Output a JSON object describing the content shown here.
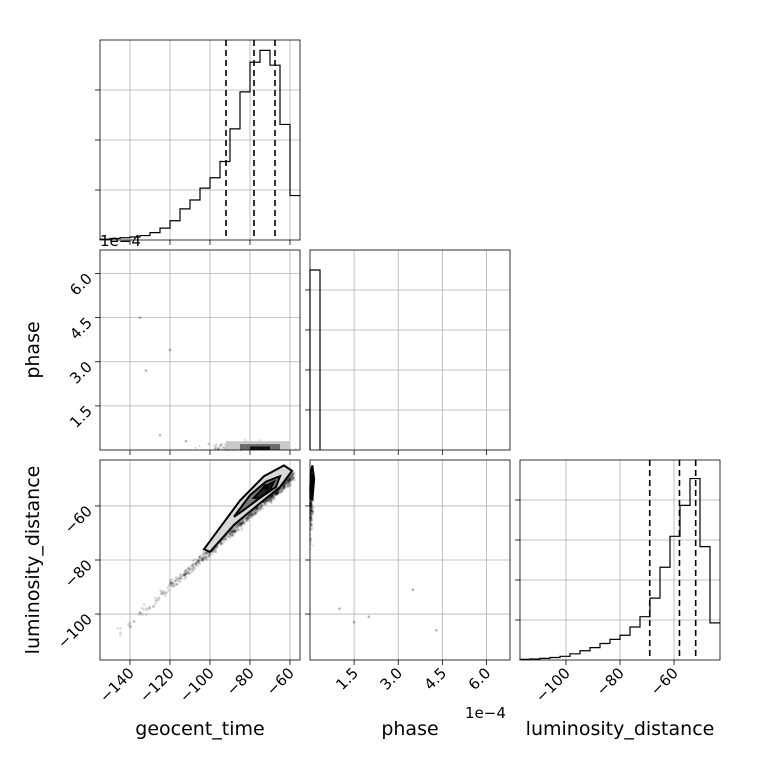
{
  "chart_data": {
    "type": "corner",
    "parameters": [
      "geocent_time",
      "phase",
      "luminosity_distance"
    ],
    "axis_labels": {
      "geocent_time": "geocent_time",
      "phase": "phase",
      "luminosity_distance": "luminosity_distance"
    },
    "ranges": {
      "geocent_time": [
        -155,
        -55
      ],
      "phase": [
        0,
        0.00068
      ],
      "luminosity_distance": [
        -117,
        -43
      ]
    },
    "offset_text": "1e−4",
    "ticks": {
      "geocent_time": [
        {
          "v": -140,
          "label": "−140"
        },
        {
          "v": -120,
          "label": "−120"
        },
        {
          "v": -100,
          "label": "−100"
        },
        {
          "v": -80,
          "label": "−80"
        },
        {
          "v": -60,
          "label": "−60"
        }
      ],
      "phase": [
        {
          "v": 0.00015,
          "label": "1.5"
        },
        {
          "v": 0.0003,
          "label": "3.0"
        },
        {
          "v": 0.00045,
          "label": "4.5"
        },
        {
          "v": 0.0006,
          "label": "6.0"
        }
      ],
      "luminosity_distance": [
        {
          "v": -100,
          "label": "−100"
        },
        {
          "v": -80,
          "label": "−80"
        },
        {
          "v": -60,
          "label": "−60"
        }
      ]
    },
    "histograms": {
      "geocent_time": {
        "edges": [
          -155,
          -150,
          -145,
          -140,
          -135,
          -130,
          -125,
          -120,
          -115,
          -110,
          -105,
          -100,
          -95,
          -90,
          -85,
          -80,
          -75,
          -70,
          -65,
          -60,
          -55
        ],
        "counts": [
          0.005,
          0.01,
          0.015,
          0.02,
          0.03,
          0.05,
          0.08,
          0.13,
          0.21,
          0.27,
          0.35,
          0.42,
          0.53,
          0.75,
          1.0,
          1.2,
          1.28,
          1.18,
          0.78,
          0.3
        ],
        "quantiles": [
          -92,
          -78,
          -67.5
        ]
      },
      "phase": {
        "edges": [
          0,
          0.00034
        ],
        "counts": [
          1.0
        ],
        "bin_width": 3.4e-05
      },
      "luminosity_distance": {
        "edges": [
          -117,
          -113.3,
          -109.6,
          -105.9,
          -102.2,
          -98.5,
          -94.8,
          -91.1,
          -87.4,
          -83.7,
          -80,
          -76.3,
          -72.6,
          -68.9,
          -65.2,
          -61.5,
          -57.8,
          -54.1,
          -50.4,
          -46.7,
          -43
        ],
        "counts": [
          0.003,
          0.005,
          0.008,
          0.012,
          0.018,
          0.03,
          0.045,
          0.06,
          0.08,
          0.1,
          0.12,
          0.16,
          0.21,
          0.3,
          0.45,
          0.6,
          0.75,
          0.88,
          0.55,
          0.18
        ],
        "quantiles": [
          -69,
          -58,
          -52
        ]
      }
    },
    "joint": {
      "phase_vs_geocent_time": {
        "x": "geocent_time",
        "y": "phase",
        "core_x": [
          -90,
          -60
        ],
        "core_y": [
          0,
          3e-05
        ],
        "outliers": [
          {
            "x": -135,
            "y": 0.00045
          },
          {
            "x": -120,
            "y": 0.00034
          },
          {
            "x": -132,
            "y": 0.00027
          },
          {
            "x": -112,
            "y": 3e-05
          },
          {
            "x": -125,
            "y": 5e-05
          }
        ]
      },
      "luminosity_distance_vs_geocent_time": {
        "x": "geocent_time",
        "y": "luminosity_distance",
        "ridge": {
          "x": [
            -150,
            -60
          ],
          "y": [
            -110,
            -50
          ]
        },
        "peak": {
          "x": -72,
          "y": -53
        },
        "contours": [
          [
            [
              -103,
              -76
            ],
            [
              -95,
              -68
            ],
            [
              -85,
              -58
            ],
            [
              -73,
              -49
            ],
            [
              -63,
              -45
            ],
            [
              -59,
              -47
            ],
            [
              -65,
              -53
            ],
            [
              -75,
              -59
            ],
            [
              -88,
              -67
            ],
            [
              -100,
              -77
            ]
          ],
          [
            [
              -88,
              -64
            ],
            [
              -80,
              -56
            ],
            [
              -72,
              -51
            ],
            [
              -65,
              -49
            ],
            [
              -67,
              -53
            ],
            [
              -75,
              -57
            ],
            [
              -84,
              -62
            ]
          ],
          [
            [
              -78,
              -57
            ],
            [
              -73,
              -53
            ],
            [
              -68,
              -51
            ],
            [
              -70,
              -54
            ],
            [
              -75,
              -57
            ]
          ]
        ]
      },
      "luminosity_distance_vs_phase": {
        "x": "phase",
        "y": "luminosity_distance",
        "core_x": [
          0,
          3e-05
        ],
        "core_y": [
          -60,
          -45
        ],
        "contours": [
          [
            [
              2e-06,
              -48
            ],
            [
              8e-06,
              -45
            ],
            [
              1.4e-05,
              -50
            ],
            [
              8e-06,
              -58
            ],
            [
              2e-06,
              -56
            ]
          ],
          [
            [
              2e-06,
              -50
            ],
            [
              6e-06,
              -48
            ],
            [
              1e-05,
              -53
            ],
            [
              4e-06,
              -56
            ]
          ]
        ],
        "outliers": [
          {
            "x": 0.0001,
            "y": -98
          },
          {
            "x": 0.00015,
            "y": -103
          },
          {
            "x": 0.00035,
            "y": -91
          },
          {
            "x": 0.00043,
            "y": -106
          },
          {
            "x": 0.0002,
            "y": -101
          }
        ]
      }
    }
  }
}
